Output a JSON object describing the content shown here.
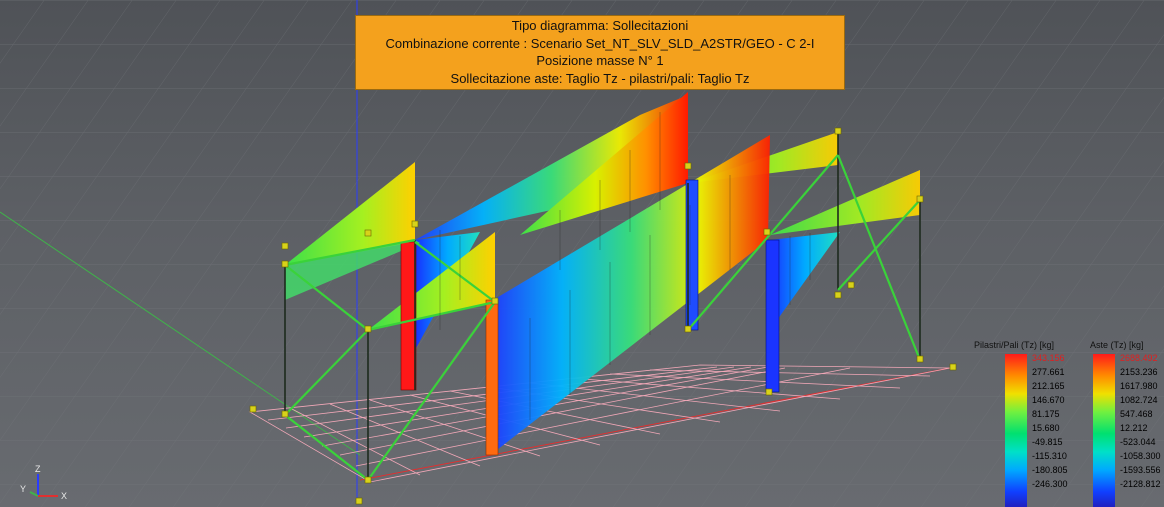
{
  "info_box": {
    "line1": "Tipo diagramma: Sollecitazioni",
    "line2": "Combinazione corrente : Scenario Set_NT_SLV_SLD_A2STR/GEO - C 2-I",
    "line3": "Posizione masse N° 1",
    "line4": "Sollecitazione aste: Taglio Tz - pilastri/pali: Taglio Tz"
  },
  "legend_pilastri": {
    "title": "Pilastri/Pali (Tz) [kg]",
    "values": [
      "343.156",
      "277.661",
      "212.165",
      "146.670",
      "81.175",
      "15.680",
      "-49.815",
      "-115.310",
      "-180.805",
      "-246.300"
    ],
    "max_color": "#ff2a2a"
  },
  "legend_aste": {
    "title": "Aste (Tz) [kg]",
    "values": [
      "2688.492",
      "2153.236",
      "1617.980",
      "1082.724",
      "547.468",
      "12.212",
      "-523.044",
      "-1058.300",
      "-1593.556",
      "-2128.812"
    ],
    "max_color": "#ff2a2a"
  },
  "axes": {
    "z": "Z",
    "y": "Y",
    "x": "X"
  },
  "colors": {
    "orange_box": "#f4a11d",
    "grid": "#f2a8b8",
    "axis_blue": "#2a3cff",
    "axis_green": "#3fb34a",
    "axis_red": "#e03030",
    "node": "#d8d21a"
  }
}
